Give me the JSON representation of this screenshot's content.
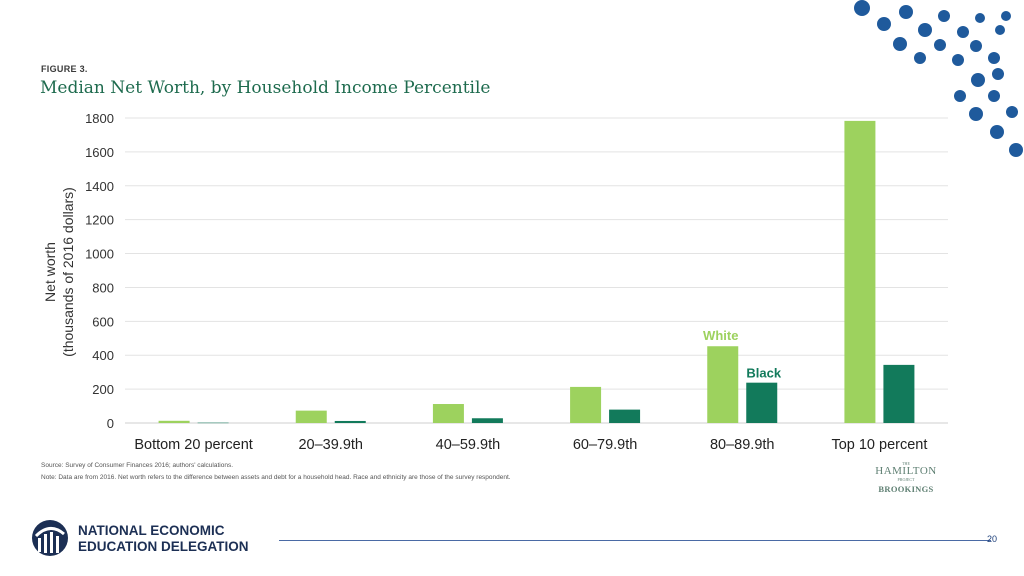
{
  "figure_label": "FIGURE 3.",
  "title": "Median Net Worth, by Household Income Percentile",
  "chart_data": {
    "type": "bar",
    "categories": [
      "Bottom 20 percent",
      "20–39.9th",
      "40–59.9th",
      "60–79.9th",
      "80–89.9th",
      "Top 10 percent"
    ],
    "series": [
      {
        "name": "White",
        "values": [
          13,
          73,
          112,
          213,
          453,
          1783
        ]
      },
      {
        "name": "Black",
        "values": [
          2,
          12,
          28,
          79,
          238,
          343
        ]
      }
    ],
    "ylabel_line1": "Net worth",
    "ylabel_line2": "(thousands of 2016 dollars)",
    "ylim": [
      0,
      1800
    ],
    "yticks": [
      0,
      200,
      400,
      600,
      800,
      1000,
      1200,
      1400,
      1600,
      1800
    ],
    "grid": true,
    "colors": {
      "White": "#9dd25e",
      "Black": "#127a5b"
    },
    "legend": "inline labels above the 80–89.9th bars"
  },
  "source": "Source: Survey of Consumer Finances 2016; authors' calculations.",
  "note": "Note: Data are from 2016. Net worth refers to the difference between assets and debt for a household head. Race and ethnicity are those of the survey respondent.",
  "partner_logo": {
    "the": "THE",
    "name": "HAMILTON",
    "project": "PROJECT",
    "brookings": "BROOKINGS"
  },
  "footer": {
    "org_line1": "NATIONAL ECONOMIC",
    "org_line2": "EDUCATION DELEGATION",
    "page_number": "20"
  },
  "brand_colors": {
    "navy": "#1c2f54",
    "dot_blue": "#1f5a9c",
    "title_green": "#1e6b4e"
  }
}
